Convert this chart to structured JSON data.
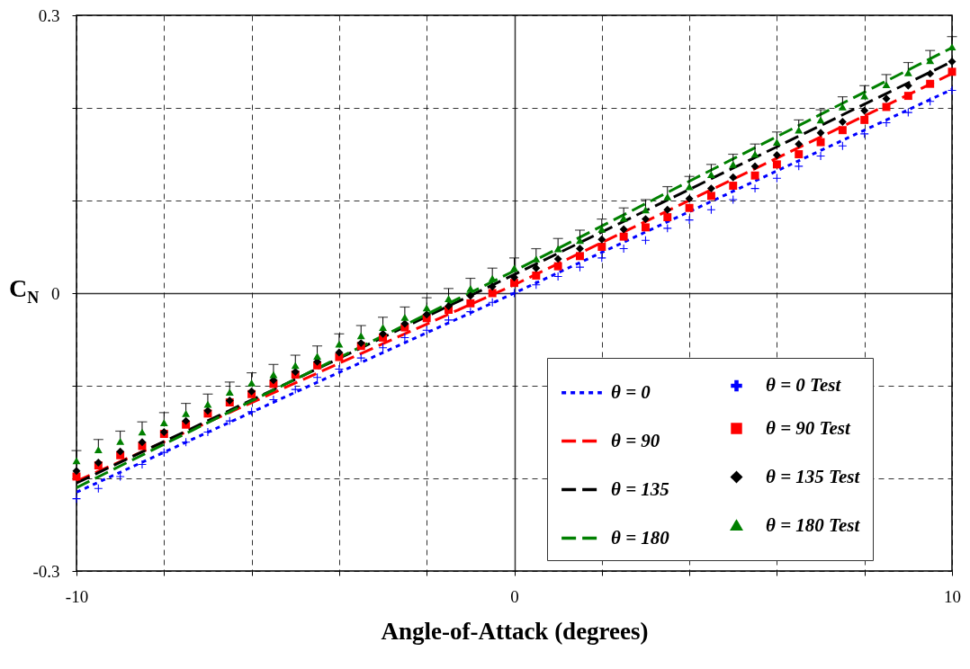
{
  "chart_data": {
    "type": "line",
    "xlabel": "Angle-of-Attack (degrees)",
    "ylabel": "C$_{N}$",
    "x": [
      -10,
      -9.5,
      -9,
      -8.5,
      -8,
      -7.5,
      -7,
      -6.5,
      -6,
      -5.5,
      -5,
      -4.5,
      -4,
      -3.5,
      -3,
      -2.5,
      -2,
      -1.5,
      -1,
      -0.5,
      0,
      0.5,
      1,
      1.5,
      2,
      2.5,
      3,
      3.5,
      4,
      4.5,
      5,
      5.5,
      6,
      6.5,
      7,
      7.5,
      8,
      8.5,
      9,
      9.5,
      10
    ],
    "xlim": [
      -10,
      10
    ],
    "xticks": [
      -10,
      {
        "value": -8,
        "label": null
      },
      {
        "value": -6,
        "label": null
      },
      {
        "value": -4,
        "label": null
      },
      {
        "value": -2,
        "label": null
      },
      0,
      {
        "value": 2,
        "label": null
      },
      {
        "value": 4,
        "label": null
      },
      {
        "value": 6,
        "label": null
      },
      {
        "value": 8,
        "label": null
      },
      10
    ],
    "ylim": [
      -0.3,
      0.3
    ],
    "yticks": [
      -0.3,
      {
        "value": -0.2,
        "label": null
      },
      {
        "value": -0.1,
        "label": null
      },
      0,
      {
        "value": 0.1,
        "label": null
      },
      {
        "value": 0.2,
        "label": null
      },
      0.3
    ],
    "grid": true,
    "legend": "bottom right",
    "series": [
      {
        "name": "θ = 0",
        "type": "line",
        "color": "#0000ff",
        "line_style": "dotted",
        "marker": "none",
        "x": [
          -10,
          -5,
          0,
          5,
          10
        ],
        "values": [
          -0.215,
          -0.107,
          0,
          0.11,
          0.22
        ]
      },
      {
        "name": "θ = 90",
        "type": "line",
        "color": "#ff0000",
        "line_style": "dashed",
        "marker": "none",
        "x": [
          -10,
          -5,
          0,
          5,
          10
        ],
        "values": [
          -0.203,
          -0.097,
          0.009,
          0.123,
          0.237
        ]
      },
      {
        "name": "θ = 135",
        "type": "line",
        "color": "#000000",
        "line_style": "dashed",
        "marker": "none",
        "x": [
          -10,
          -5,
          0,
          5,
          10
        ],
        "values": [
          -0.205,
          -0.093,
          0.02,
          0.135,
          0.25
        ]
      },
      {
        "name": "θ = 180",
        "type": "line",
        "color": "#008000",
        "line_style": "dashed",
        "marker": "none",
        "x": [
          -10,
          -5,
          0,
          5,
          10
        ],
        "values": [
          -0.21,
          -0.093,
          0.024,
          0.145,
          0.265
        ]
      },
      {
        "name": "θ = 0 Test",
        "type": "scatter",
        "color": "#0000ff",
        "marker": "cross",
        "values": [
          -0.222,
          -0.211,
          -0.198,
          -0.185,
          -0.172,
          -0.161,
          -0.15,
          -0.138,
          -0.128,
          -0.115,
          -0.104,
          -0.091,
          -0.082,
          -0.07,
          -0.059,
          -0.048,
          -0.04,
          -0.029,
          -0.02,
          -0.01,
          0,
          0.009,
          0.018,
          0.028,
          0.038,
          0.048,
          0.057,
          0.07,
          0.079,
          0.09,
          0.101,
          0.113,
          0.124,
          0.137,
          0.148,
          0.159,
          0.172,
          0.184,
          0.195,
          0.207,
          0.219
        ]
      },
      {
        "name": "θ = 90 Test",
        "type": "scatter",
        "color": "#ff0000",
        "marker": "square",
        "values": [
          -0.198,
          -0.186,
          -0.175,
          -0.165,
          -0.152,
          -0.142,
          -0.13,
          -0.118,
          -0.109,
          -0.098,
          -0.088,
          -0.078,
          -0.069,
          -0.057,
          -0.048,
          -0.037,
          -0.027,
          -0.018,
          -0.011,
          0,
          0.011,
          0.019,
          0.029,
          0.04,
          0.05,
          0.061,
          0.071,
          0.082,
          0.092,
          0.105,
          0.116,
          0.127,
          0.139,
          0.15,
          0.163,
          0.176,
          0.187,
          0.201,
          0.213,
          0.226,
          0.239
        ]
      },
      {
        "name": "θ = 135 Test",
        "type": "scatter",
        "color": "#000000",
        "marker": "diamond",
        "values": [
          -0.192,
          -0.183,
          -0.171,
          -0.161,
          -0.15,
          -0.138,
          -0.127,
          -0.116,
          -0.106,
          -0.094,
          -0.085,
          -0.074,
          -0.064,
          -0.054,
          -0.044,
          -0.033,
          -0.023,
          -0.014,
          -0.003,
          0.007,
          0.017,
          0.027,
          0.037,
          0.048,
          0.058,
          0.069,
          0.08,
          0.09,
          0.102,
          0.113,
          0.125,
          0.137,
          0.149,
          0.161,
          0.173,
          0.185,
          0.197,
          0.21,
          0.224,
          0.237,
          0.25
        ]
      },
      {
        "name": "θ = 180 Test",
        "type": "scatter",
        "color": "#008000",
        "marker": "triangle",
        "values": [
          -0.181,
          -0.169,
          -0.16,
          -0.15,
          -0.14,
          -0.13,
          -0.12,
          -0.107,
          -0.097,
          -0.088,
          -0.078,
          -0.068,
          -0.055,
          -0.046,
          -0.037,
          -0.026,
          -0.016,
          -0.006,
          0.005,
          0.016,
          0.027,
          0.037,
          0.048,
          0.057,
          0.069,
          0.081,
          0.09,
          0.104,
          0.115,
          0.128,
          0.139,
          0.15,
          0.163,
          0.176,
          0.187,
          0.201,
          0.213,
          0.225,
          0.238,
          0.251,
          0.266
        ],
        "errors": [
          [
            -0.181,
            -0.17
          ],
          [
            -0.169,
            -0.158
          ],
          [
            -0.16,
            -0.149
          ],
          [
            -0.15,
            -0.139
          ],
          [
            -0.14,
            -0.129
          ],
          [
            -0.13,
            -0.119
          ],
          [
            -0.12,
            -0.109
          ],
          [
            -0.107,
            -0.096
          ],
          [
            -0.097,
            -0.086
          ],
          [
            -0.088,
            -0.077
          ],
          [
            -0.078,
            -0.067
          ],
          [
            -0.068,
            -0.057
          ],
          [
            -0.055,
            -0.044
          ],
          [
            -0.046,
            -0.035
          ],
          [
            -0.037,
            -0.026
          ],
          [
            -0.026,
            -0.015
          ],
          [
            -0.016,
            -0.005
          ],
          [
            -0.006,
            0.005
          ],
          [
            0.005,
            0.016
          ],
          [
            0.016,
            0.027
          ],
          [
            0.027,
            0.038
          ],
          [
            0.037,
            0.048
          ],
          [
            0.048,
            0.059
          ],
          [
            0.057,
            0.068
          ],
          [
            0.069,
            0.08
          ],
          [
            0.081,
            0.092
          ],
          [
            0.09,
            0.101
          ],
          [
            0.104,
            0.115
          ],
          [
            0.115,
            0.126
          ],
          [
            0.128,
            0.139
          ],
          [
            0.139,
            0.15
          ],
          [
            0.15,
            0.161
          ],
          [
            0.163,
            0.174
          ],
          [
            0.176,
            0.187
          ],
          [
            0.187,
            0.198
          ],
          [
            0.201,
            0.212
          ],
          [
            0.213,
            0.224
          ],
          [
            0.225,
            0.236
          ],
          [
            0.238,
            0.249
          ],
          [
            0.251,
            0.262
          ],
          [
            0.266,
            0.277
          ]
        ]
      }
    ]
  }
}
